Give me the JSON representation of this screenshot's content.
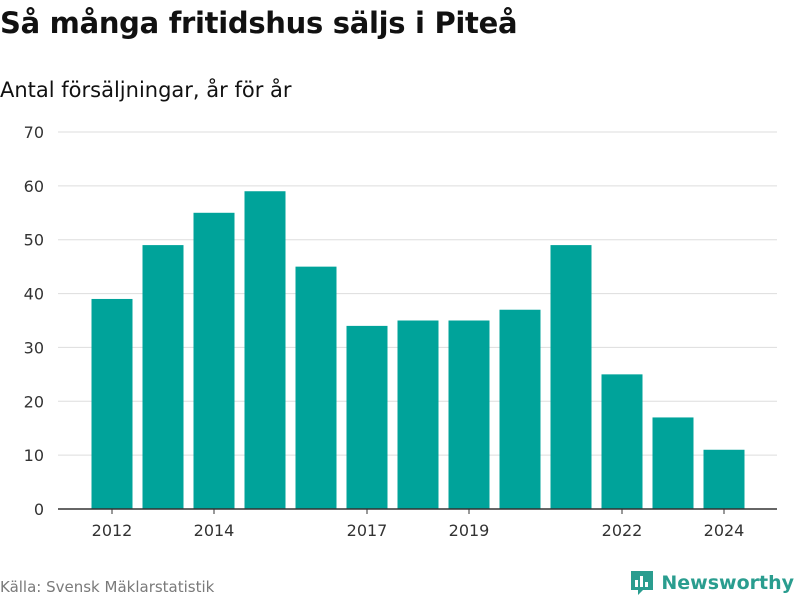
{
  "header": {
    "title": "Så många fritidshus säljs i Piteå",
    "subtitle": "Antal försäljningar, år för år"
  },
  "footer": {
    "source": "Källa: Svensk Mäklarstatistik",
    "brand": "Newsworthy",
    "brand_icon": "bar-chart-logo-icon"
  },
  "colors": {
    "bar": "#00a39a",
    "grid": "#dddddd",
    "axis": "#333333",
    "brand": "#2a9d8f"
  },
  "chart_data": {
    "type": "bar",
    "title": "Så många fritidshus säljs i Piteå",
    "subtitle": "Antal försäljningar, år för år",
    "categories": [
      2012,
      2013,
      2014,
      2015,
      2016,
      2017,
      2018,
      2019,
      2020,
      2021,
      2022,
      2023,
      2024
    ],
    "values": [
      39,
      49,
      55,
      59,
      45,
      34,
      35,
      35,
      37,
      49,
      25,
      17,
      11
    ],
    "x_tick_labels": [
      "2012",
      "2014",
      "2017",
      "2019",
      "2022",
      "2024"
    ],
    "y_ticks": [
      0,
      10,
      20,
      30,
      40,
      50,
      60,
      70
    ],
    "ylim": [
      0,
      70
    ],
    "grid": true,
    "legend": "none"
  }
}
